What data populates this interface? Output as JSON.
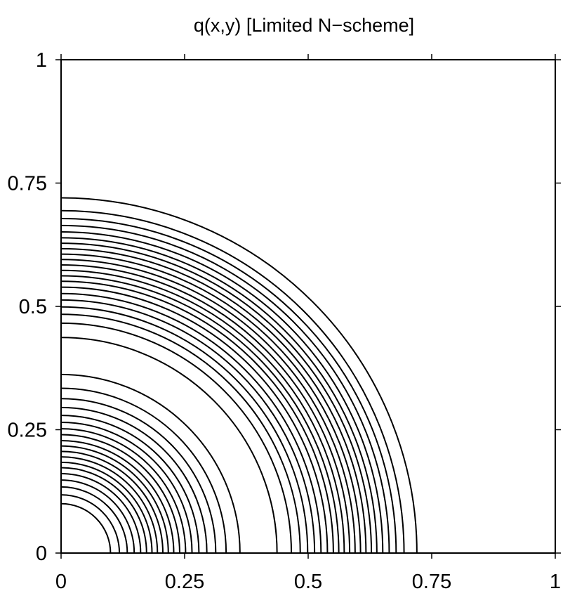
{
  "chart_data": {
    "type": "contour",
    "title": "q(x,y)   [Limited N−scheme]",
    "xlabel": "",
    "ylabel": "",
    "xlim": [
      0,
      1
    ],
    "ylim": [
      0,
      1
    ],
    "grid": false,
    "x_ticks": [
      {
        "value": 0,
        "label": "0"
      },
      {
        "value": 0.25,
        "label": "0.25"
      },
      {
        "value": 0.5,
        "label": "0.5"
      },
      {
        "value": 0.75,
        "label": "0.75"
      },
      {
        "value": 1,
        "label": "1"
      }
    ],
    "y_ticks": [
      {
        "value": 0,
        "label": "0"
      },
      {
        "value": 0.25,
        "label": "0.25"
      },
      {
        "value": 0.5,
        "label": "0.5"
      },
      {
        "value": 0.75,
        "label": "0.75"
      },
      {
        "value": 1,
        "label": "1"
      }
    ],
    "contour_radii": [
      0.1,
      0.118,
      0.134,
      0.148,
      0.161,
      0.173,
      0.184,
      0.195,
      0.206,
      0.217,
      0.228,
      0.24,
      0.252,
      0.265,
      0.279,
      0.295,
      0.313,
      0.334,
      0.362,
      0.437,
      0.466,
      0.484,
      0.499,
      0.513,
      0.526,
      0.539,
      0.551,
      0.562,
      0.573,
      0.584,
      0.595,
      0.606,
      0.617,
      0.628,
      0.639,
      0.651,
      0.664,
      0.678,
      0.694,
      0.72
    ],
    "baseline_line": {
      "from_x": 0.7,
      "to_x": 1,
      "y": 0
    }
  }
}
